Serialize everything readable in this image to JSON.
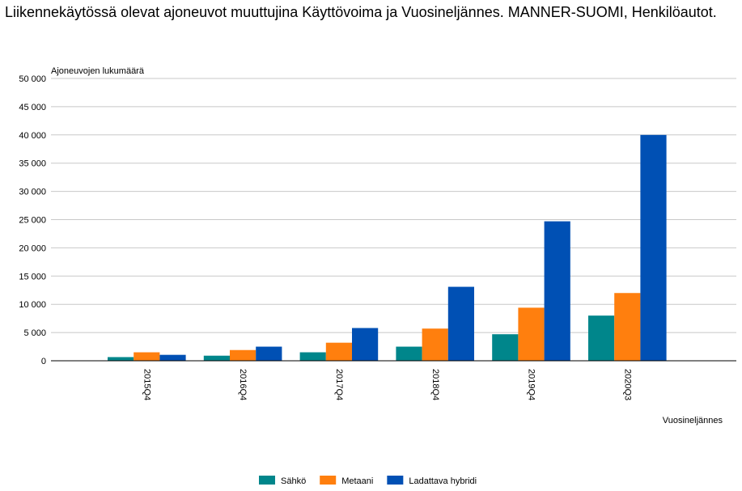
{
  "chart_data": {
    "type": "bar",
    "title": "Liikennekäytössä olevat ajoneuvot muuttujina Käyttövoima ja Vuosineljännes. MANNER-SUOMI, Henkilöautot.",
    "ylabel": "Ajoneuvojen lukumäärä",
    "xlabel": "Vuosineljännes",
    "categories": [
      "2015Q4",
      "2016Q4",
      "2017Q4",
      "2018Q4",
      "2019Q4",
      "2020Q3"
    ],
    "ylim": [
      0,
      50000
    ],
    "yticks": [
      0,
      5000,
      10000,
      15000,
      20000,
      25000,
      30000,
      35000,
      40000,
      45000,
      50000
    ],
    "ytick_labels": [
      "0",
      "5 000",
      "10 000",
      "15 000",
      "20 000",
      "25 000",
      "30 000",
      "35 000",
      "40 000",
      "45 000",
      "50 000"
    ],
    "grid": true,
    "legend_position": "bottom",
    "series": [
      {
        "name": "Sähkö",
        "color": "#00868B",
        "values": [
          650,
          900,
          1500,
          2500,
          4700,
          8000
        ]
      },
      {
        "name": "Metaani",
        "color": "#FF7F0E",
        "values": [
          1500,
          1900,
          3200,
          5700,
          9400,
          12000
        ]
      },
      {
        "name": "Ladattava hybridi",
        "color": "#0050B4",
        "values": [
          1050,
          2500,
          5800,
          13100,
          24700,
          40000
        ]
      }
    ]
  }
}
